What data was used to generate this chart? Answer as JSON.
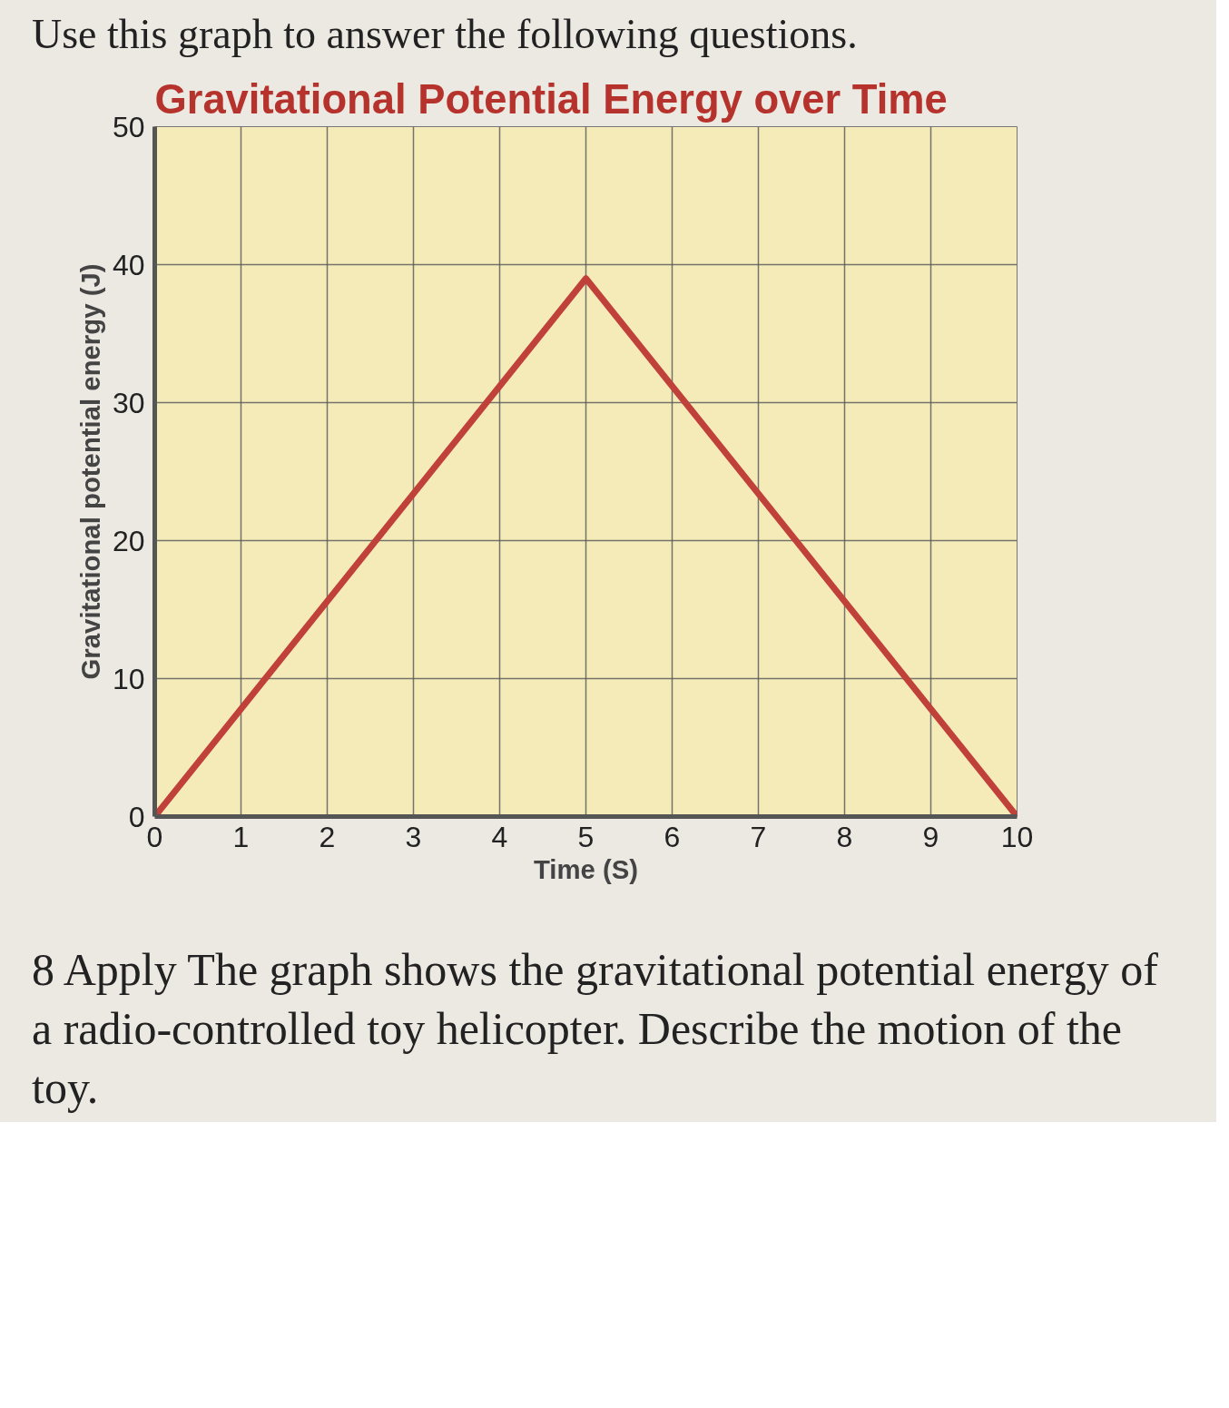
{
  "chart_data": {
    "type": "line",
    "title": "Gravitational Potential Energy over Time",
    "xlabel": "Time (S)",
    "ylabel": "Gravitational potential energy (J)",
    "annotations": [
      "Use this graph to answer the following questions.",
      "8 Apply  The graph shows the gravitational potential energy of a radio-controlled toy helicopter. Describe the motion of the toy."
    ],
    "x": [
      0,
      5,
      10
    ],
    "series": [
      {
        "color": "#c0403a",
        "values": [
          0,
          39,
          0
        ]
      }
    ],
    "xlim": [
      0,
      10
    ],
    "ylim": [
      0,
      50
    ],
    "xticks": [
      0,
      1,
      2,
      3,
      4,
      5,
      6,
      7,
      8,
      9,
      10
    ],
    "yticks": [
      0,
      10,
      20,
      30,
      40,
      50
    ],
    "grid": true,
    "marker": "none",
    "line_style": "solid"
  }
}
